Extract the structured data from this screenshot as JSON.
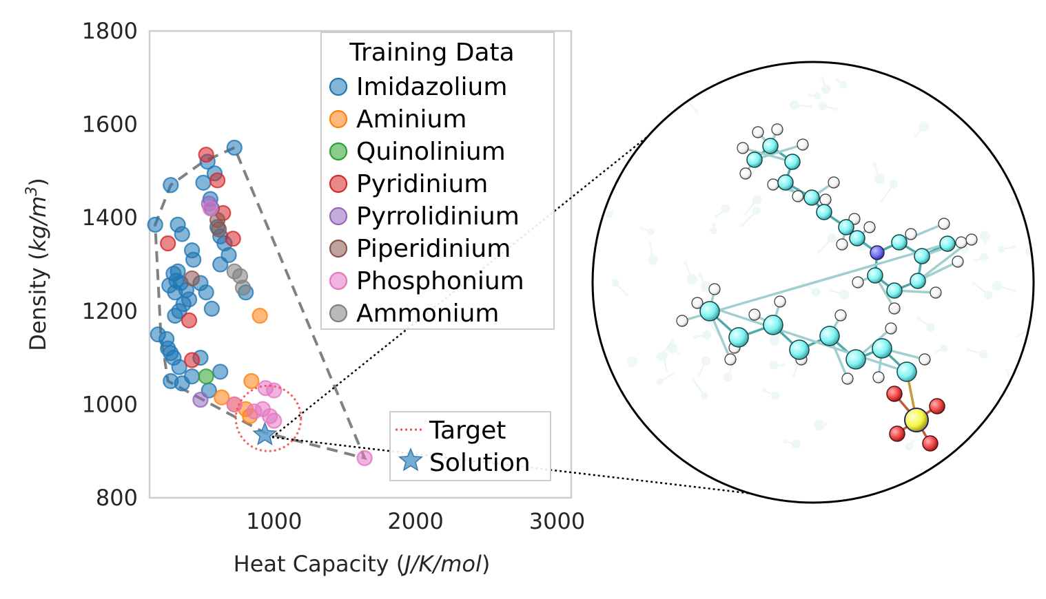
{
  "chart_data": {
    "type": "scatter",
    "xlabel": "Heat Capacity (J/K/mol)",
    "xlabel_parts": {
      "prefix": "Heat Capacity (",
      "unit": "J/K/mol",
      "suffix": ")"
    },
    "ylabel_parts": {
      "prefix": "Density (",
      "unit": "kg/m",
      "sup": "3",
      "suffix": ")"
    },
    "xlim": [
      120,
      3100
    ],
    "ylim": [
      800,
      1800
    ],
    "xticks": [
      "1000",
      "2000",
      "3000"
    ],
    "xtick_values": [
      1000,
      2000,
      3000
    ],
    "yticks": [
      "800",
      "1000",
      "1200",
      "1400",
      "1600",
      "1800"
    ],
    "ytick_values": [
      800,
      1000,
      1200,
      1400,
      1600,
      1800
    ],
    "grid": false,
    "legend": {
      "title": "Training Data",
      "placement": "top-right",
      "entries": [
        "Imidazolium",
        "Aminium",
        "Quinolinium",
        "Pyridinium",
        "Pyrrolidinium",
        "Piperidinium",
        "Phosphonium",
        "Ammonium"
      ]
    },
    "legend2": {
      "placement": "lower-right",
      "entries": [
        {
          "label": "Target",
          "style": "dotted-line",
          "color": "#f0504a"
        },
        {
          "label": "Solution",
          "style": "star",
          "color": "#5b9fd0"
        }
      ]
    },
    "series": [
      {
        "name": "Imidazolium",
        "color": "#1f77b4",
        "points": [
          [
            720,
            1550
          ],
          [
            530,
            1520
          ],
          [
            580,
            1495
          ],
          [
            270,
            1470
          ],
          [
            500,
            1475
          ],
          [
            550,
            1440
          ],
          [
            560,
            1420
          ],
          [
            320,
            1385
          ],
          [
            350,
            1365
          ],
          [
            600,
            1380
          ],
          [
            620,
            1360
          ],
          [
            650,
            1345
          ],
          [
            420,
            1330
          ],
          [
            430,
            1310
          ],
          [
            320,
            1285
          ],
          [
            290,
            1280
          ],
          [
            310,
            1265
          ],
          [
            340,
            1260
          ],
          [
            260,
            1255
          ],
          [
            300,
            1240
          ],
          [
            380,
            1245
          ],
          [
            400,
            1225
          ],
          [
            360,
            1215
          ],
          [
            330,
            1200
          ],
          [
            300,
            1190
          ],
          [
            480,
            1260
          ],
          [
            520,
            1240
          ],
          [
            560,
            1205
          ],
          [
            620,
            1300
          ],
          [
            680,
            1320
          ],
          [
            800,
            1240
          ],
          [
            180,
            1150
          ],
          [
            240,
            1140
          ],
          [
            250,
            1120
          ],
          [
            270,
            1110
          ],
          [
            290,
            1100
          ],
          [
            330,
            1080
          ],
          [
            480,
            1100
          ],
          [
            420,
            1060
          ],
          [
            270,
            1050
          ],
          [
            350,
            1045
          ],
          [
            620,
            1070
          ],
          [
            540,
            1030
          ],
          [
            160,
            1385
          ]
        ]
      },
      {
        "name": "Aminium",
        "color": "#ff7f0e",
        "points": [
          [
            900,
            1190
          ],
          [
            840,
            1050
          ],
          [
            630,
            1015
          ],
          [
            720,
            1000
          ],
          [
            800,
            990
          ],
          [
            830,
            975
          ]
        ]
      },
      {
        "name": "Quinolinium",
        "color": "#2ca02c",
        "points": [
          [
            520,
            1060
          ]
        ]
      },
      {
        "name": "Pyridinium",
        "color": "#d62728",
        "points": [
          [
            520,
            1535
          ],
          [
            600,
            1480
          ],
          [
            640,
            1410
          ],
          [
            710,
            1355
          ],
          [
            250,
            1345
          ],
          [
            400,
            1180
          ],
          [
            420,
            1095
          ]
        ]
      },
      {
        "name": "Pyrrolidinium",
        "color": "#9467bd",
        "points": [
          [
            540,
            1430
          ],
          [
            480,
            1010
          ]
        ]
      },
      {
        "name": "Piperidinium",
        "color": "#8c564b",
        "points": [
          [
            600,
            1395
          ],
          [
            610,
            1375
          ],
          [
            420,
            1270
          ]
        ]
      },
      {
        "name": "Phosphonium",
        "color": "#e377c2",
        "points": [
          [
            940,
            1035
          ],
          [
            1000,
            1030
          ],
          [
            720,
            1000
          ],
          [
            920,
            990
          ],
          [
            970,
            975
          ],
          [
            1000,
            965
          ],
          [
            1640,
            885
          ],
          [
            550,
            1420
          ],
          [
            860,
            985
          ]
        ]
      },
      {
        "name": "Ammonium",
        "color": "#7f7f7f",
        "points": [
          [
            720,
            1285
          ],
          [
            760,
            1275
          ],
          [
            780,
            1250
          ]
        ]
      }
    ],
    "hull_polygon": [
      [
        720,
        1550
      ],
      [
        500,
        1520
      ],
      [
        270,
        1470
      ],
      [
        160,
        1385
      ],
      [
        200,
        1150
      ],
      [
        250,
        1050
      ],
      [
        930,
        940
      ],
      [
        1640,
        885
      ],
      [
        720,
        1550
      ]
    ],
    "target": {
      "center": [
        960,
        970
      ],
      "radius_x": 230,
      "radius_y": 70
    },
    "solution": [
      935,
      935
    ]
  },
  "molecule_inset": {
    "description_colors": {
      "carbon": "#7ff3f3",
      "hydrogen": "#ffffff",
      "nitrogen": "#6e6ef0",
      "oxygen": "#ee4444",
      "sulfur": "#f5f542"
    }
  }
}
